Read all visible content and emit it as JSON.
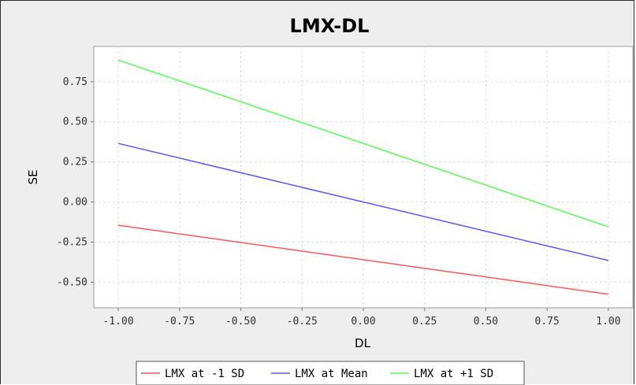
{
  "chart_data": {
    "type": "line",
    "title": "LMX-DL",
    "xlabel": "DL",
    "ylabel": "SE",
    "x_ticks": [
      "-1.00",
      "-0.75",
      "-0.50",
      "-0.25",
      "0.00",
      "0.25",
      "0.50",
      "0.75",
      "1.00"
    ],
    "y_ticks": [
      "-0.50",
      "-0.25",
      "0.00",
      "0.25",
      "0.50",
      "0.75"
    ],
    "xlim": [
      -1.1,
      1.1
    ],
    "ylim": [
      -0.66,
      0.97
    ],
    "grid": true,
    "legend_position": "bottom",
    "series": [
      {
        "name": "LMX at -1 SD",
        "color": "#ff5555",
        "x": [
          -1.0,
          1.0
        ],
        "y": [
          -0.145,
          -0.575
        ]
      },
      {
        "name": "LMX at Mean",
        "color": "#5555ff",
        "x": [
          -1.0,
          1.0
        ],
        "y": [
          0.365,
          -0.365
        ]
      },
      {
        "name": "LMX at +1 SD",
        "color": "#55ff55",
        "x": [
          -1.0,
          1.0
        ],
        "y": [
          0.885,
          -0.155
        ]
      }
    ]
  }
}
